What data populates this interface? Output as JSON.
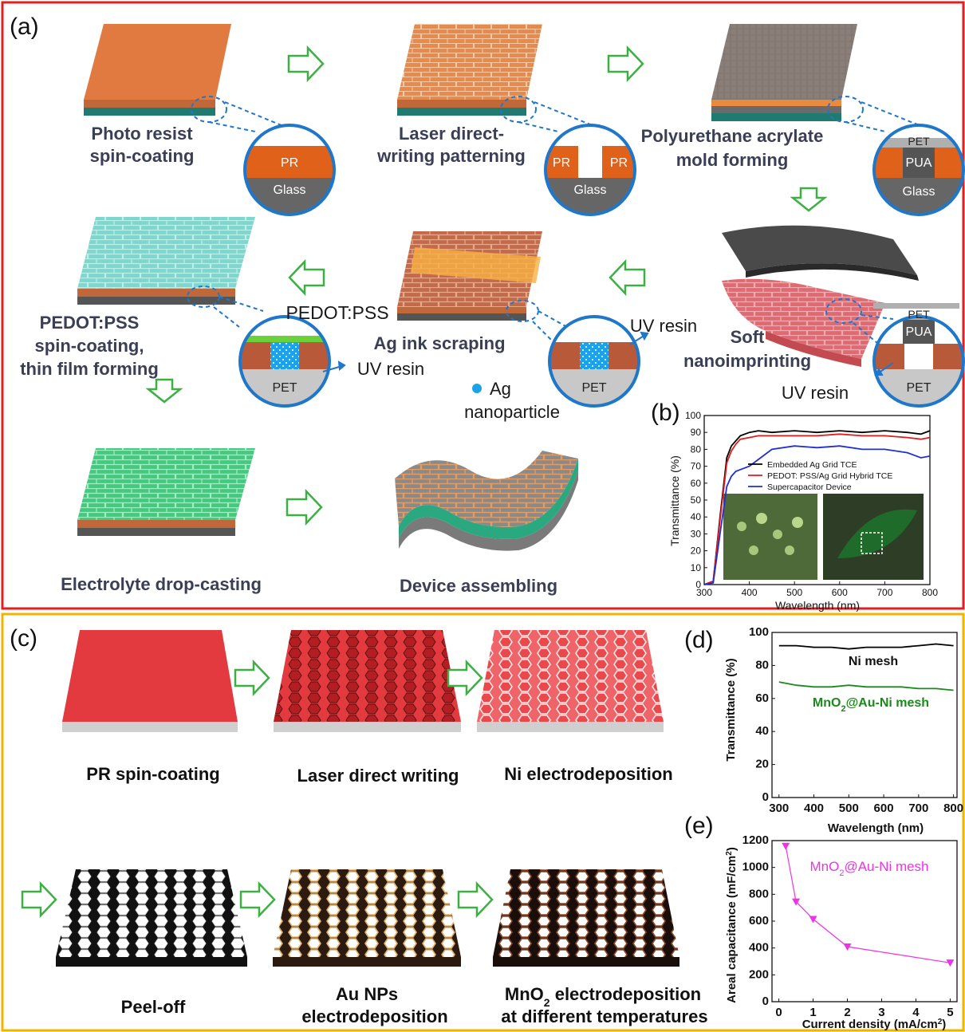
{
  "panel_labels": {
    "a": "(a)",
    "b": "(b)",
    "c": "(c)",
    "d": "(d)",
    "e": "(e)"
  },
  "panel_a": {
    "steps": [
      "Photo resist",
      "spin-coating",
      "Laser direct-",
      "writing patterning",
      "Polyurethane acrylate",
      "mold forming",
      "Soft",
      "nanoimprinting",
      "Ag ink scraping",
      "PEDOT:PSS",
      "spin-coating,",
      "thin film forming",
      "Electrolyte drop-casting",
      "Device assembling"
    ],
    "callouts": {
      "pr": "PR",
      "glass": "Glass",
      "pet": "PET",
      "pua": "PUA",
      "uv_resin": "UV resin",
      "pedot": "PEDOT:PSS",
      "ag": "Ag",
      "nanoparticle": "nanoparticle"
    },
    "colors": {
      "border": "#e02020",
      "arrow": "#3cb043",
      "callout": "#1f77c9",
      "ag_dot": "#1aa3e8"
    }
  },
  "panel_c": {
    "steps": [
      "PR spin-coating",
      "Laser direct writing",
      "Ni electrodeposition",
      "Peel-off",
      "Au NPs",
      "electrodeposition",
      "MnO",
      "2",
      " electrodeposition",
      "at different temperatures"
    ],
    "colors": {
      "border": "#f0b400"
    }
  },
  "chart_data": [
    {
      "type": "line",
      "panel": "(b)",
      "xlabel": "Wavelength (nm)",
      "ylabel": "Transmittance (%)",
      "xlim": [
        300,
        800
      ],
      "ylim": [
        0,
        100
      ],
      "xticks": [
        "300",
        "400",
        "500",
        "600",
        "700",
        "800"
      ],
      "yticks": [
        "0",
        "10",
        "20",
        "30",
        "40",
        "50",
        "60",
        "70",
        "80",
        "90",
        "100"
      ],
      "legend_position": "top-right",
      "x": [
        300,
        320,
        335,
        350,
        360,
        370,
        380,
        400,
        420,
        450,
        500,
        550,
        600,
        650,
        700,
        750,
        780,
        800
      ],
      "series": [
        {
          "name": "Embedded Ag Grid TCE",
          "color": "#000000",
          "values": [
            0,
            2,
            40,
            75,
            82,
            85,
            88,
            90,
            91,
            90,
            91,
            90,
            91,
            90,
            91,
            90,
            89,
            91
          ]
        },
        {
          "name": "PEDOT: PSS/Ag Grid Hybrid TCE",
          "color": "#e21b1b",
          "values": [
            0,
            2,
            38,
            72,
            79,
            83,
            86,
            87,
            88,
            88,
            88,
            88,
            89,
            88,
            88,
            87,
            86,
            87
          ]
        },
        {
          "name": "Supercapacitor Device",
          "color": "#1f2fd6",
          "values": [
            0,
            1,
            30,
            58,
            64,
            67,
            68,
            70,
            74,
            80,
            82,
            81,
            82,
            80,
            80,
            78,
            75,
            76
          ]
        }
      ]
    },
    {
      "type": "line",
      "panel": "(d)",
      "xlabel": "Wavelength (nm)",
      "ylabel": "Transmittance (%)",
      "xlim": [
        280,
        810
      ],
      "ylim": [
        0,
        100
      ],
      "xticks": [
        "300",
        "400",
        "500",
        "600",
        "700",
        "800"
      ],
      "yticks": [
        "0",
        "20",
        "40",
        "60",
        "80",
        "100"
      ],
      "x": [
        300,
        350,
        400,
        450,
        500,
        550,
        600,
        650,
        700,
        750,
        800
      ],
      "series": [
        {
          "name": "Ni mesh",
          "color": "#000000",
          "values": [
            92,
            92,
            91,
            91,
            90,
            91,
            91,
            91,
            92,
            93,
            92
          ]
        },
        {
          "name": "MnO2@Au-Ni mesh",
          "color": "#1a8a1a",
          "values": [
            70,
            68,
            67,
            67,
            68,
            67,
            67,
            67,
            66,
            66,
            65
          ]
        }
      ],
      "annotations": [
        "Ni mesh",
        "MnO",
        "2",
        "@Au-Ni mesh"
      ]
    },
    {
      "type": "scatter",
      "panel": "(e)",
      "xlabel_parts": [
        "Current density (mA/cm",
        "2",
        ")"
      ],
      "ylabel_parts": [
        "Areal capacitance (mF/cm",
        "2",
        ")"
      ],
      "xlim": [
        -0.2,
        5.2
      ],
      "ylim": [
        0,
        1200
      ],
      "xticks": [
        "0",
        "1",
        "2",
        "3",
        "4",
        "5"
      ],
      "yticks": [
        "0",
        "200",
        "400",
        "600",
        "800",
        "1000",
        "1200"
      ],
      "series": [
        {
          "name": "MnO2@Au-Ni mesh",
          "color": "#f032e6",
          "x": [
            0.2,
            0.5,
            1,
            2,
            5
          ],
          "values": [
            1160,
            745,
            615,
            410,
            290
          ]
        }
      ],
      "annotations": [
        "MnO",
        "2",
        "@Au-Ni mesh"
      ]
    }
  ]
}
